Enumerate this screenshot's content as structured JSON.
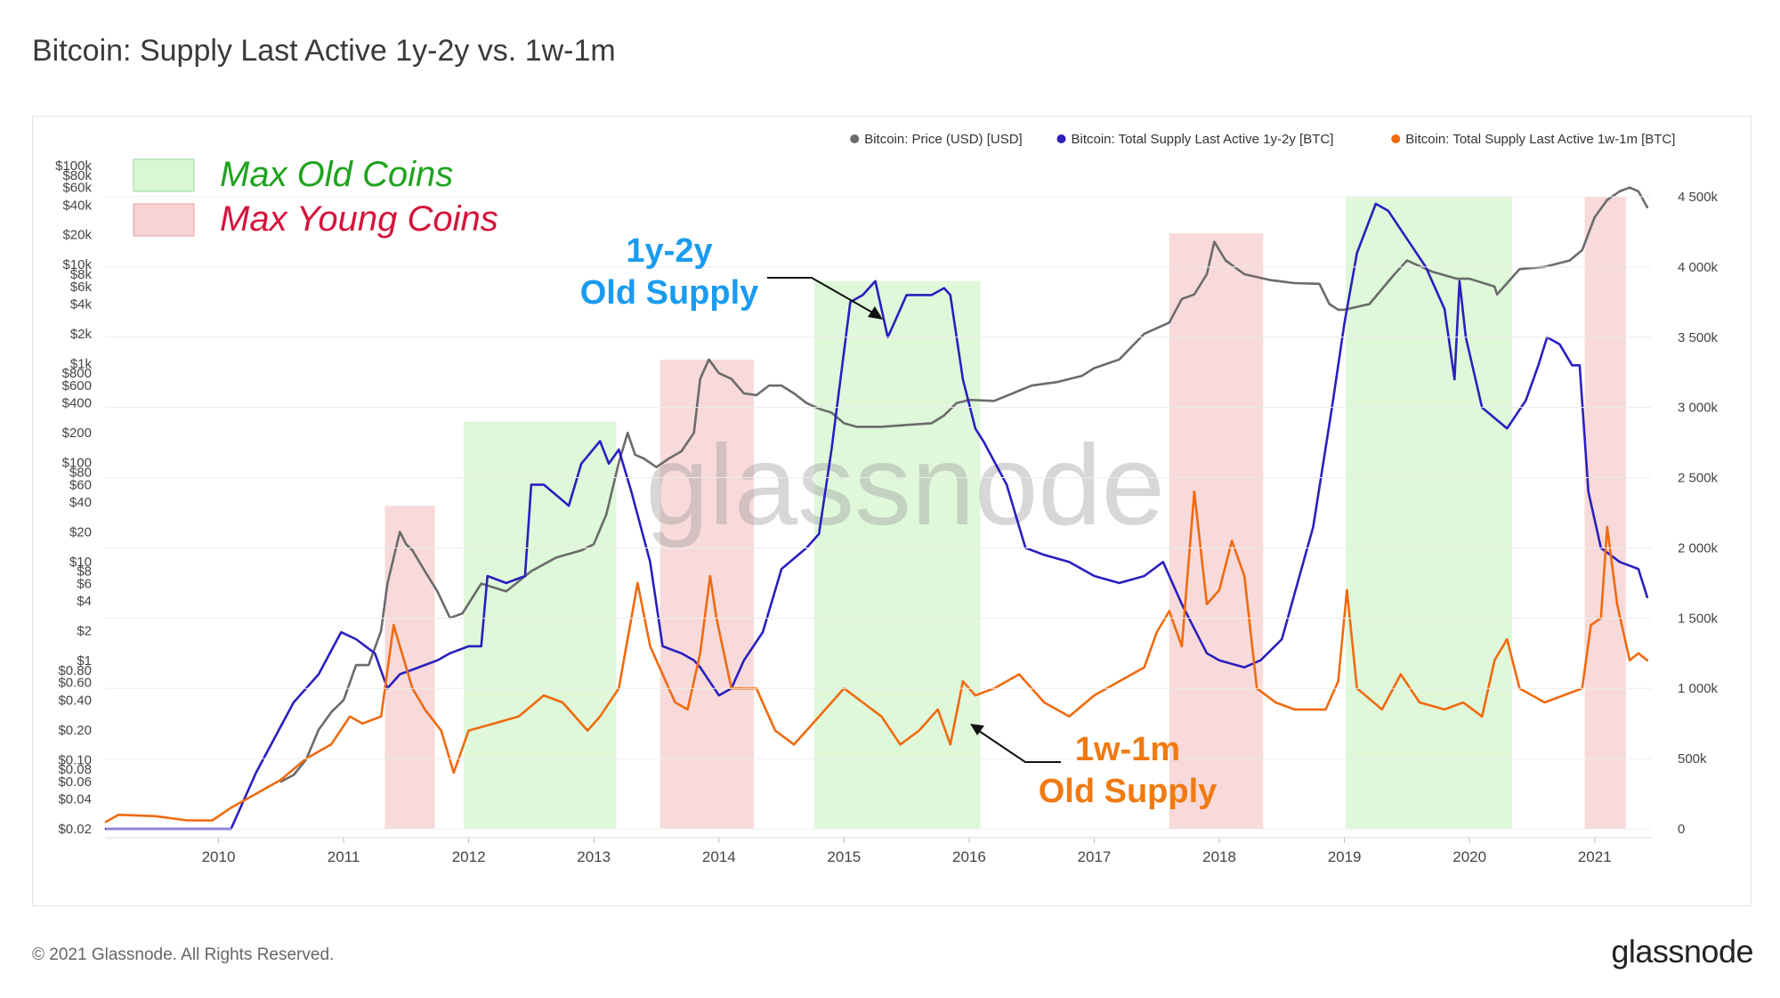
{
  "page": {
    "title": "Bitcoin: Supply Last Active 1y-2y vs. 1w-1m",
    "copyright": "© 2021 Glassnode. All Rights Reserved.",
    "brand": "glassnode",
    "watermark": "glassnode"
  },
  "chart_data": {
    "type": "line",
    "title": "Bitcoin: Supply Last Active 1y-2y vs. 1w-1m",
    "colors": {
      "price": "#6b6b6b",
      "old_supply": "#2a1fbf",
      "young_supply": "#f06a0f",
      "max_old_fill": "#d9f7d3",
      "max_young_fill": "#f7d3d3",
      "old_label": "#1a9bf0",
      "young_label": "#f07a12",
      "legend_old_text": "#1fa31f",
      "legend_young_text": "#d4143c"
    },
    "legend": {
      "position": "top-right",
      "entries": [
        "Bitcoin: Price (USD) [USD]",
        "Bitcoin: Total Supply Last Active 1y-2y [BTC]",
        "Bitcoin: Total Supply Last Active 1w-1m [BTC]"
      ]
    },
    "band_legend": {
      "position": "top-left",
      "entries": [
        {
          "label": "Max Old Coins",
          "kind": "old"
        },
        {
          "label": "Max Young Coins",
          "kind": "young"
        }
      ]
    },
    "annotations": {
      "old_supply": [
        "1y-2y",
        "Old Supply"
      ],
      "young_supply": [
        "1w-1m",
        "Old Supply"
      ]
    },
    "x_axis": {
      "range": [
        2009.1,
        2021.45
      ],
      "ticks": [
        "2010",
        "2011",
        "2012",
        "2013",
        "2014",
        "2015",
        "2016",
        "2017",
        "2018",
        "2019",
        "2020",
        "2021"
      ],
      "tick_values": [
        2010,
        2011,
        2012,
        2013,
        2014,
        2015,
        2016,
        2017,
        2018,
        2019,
        2020,
        2021
      ]
    },
    "y_left": {
      "scale": "log",
      "unit": "USD",
      "range": [
        0.02,
        100000
      ],
      "ticks": [
        {
          "label": "$0.02",
          "value": 0.02
        },
        {
          "label": "$0.04",
          "value": 0.04
        },
        {
          "label": "$0.06",
          "value": 0.06
        },
        {
          "label": "$0.08",
          "value": 0.08
        },
        {
          "label": "$0.10",
          "value": 0.1
        },
        {
          "label": "$0.20",
          "value": 0.2
        },
        {
          "label": "$0.40",
          "value": 0.4
        },
        {
          "label": "$0.60",
          "value": 0.6
        },
        {
          "label": "$0.80",
          "value": 0.8
        },
        {
          "label": "$1",
          "value": 1
        },
        {
          "label": "$2",
          "value": 2
        },
        {
          "label": "$4",
          "value": 4
        },
        {
          "label": "$6",
          "value": 6
        },
        {
          "label": "$8",
          "value": 8
        },
        {
          "label": "$10",
          "value": 10
        },
        {
          "label": "$20",
          "value": 20
        },
        {
          "label": "$40",
          "value": 40
        },
        {
          "label": "$60",
          "value": 60
        },
        {
          "label": "$80",
          "value": 80
        },
        {
          "label": "$100",
          "value": 100
        },
        {
          "label": "$200",
          "value": 200
        },
        {
          "label": "$400",
          "value": 400
        },
        {
          "label": "$600",
          "value": 600
        },
        {
          "label": "$800",
          "value": 800
        },
        {
          "label": "$1k",
          "value": 1000
        },
        {
          "label": "$2k",
          "value": 2000
        },
        {
          "label": "$4k",
          "value": 4000
        },
        {
          "label": "$6k",
          "value": 6000
        },
        {
          "label": "$8k",
          "value": 8000
        },
        {
          "label": "$10k",
          "value": 10000
        },
        {
          "label": "$20k",
          "value": 20000
        },
        {
          "label": "$40k",
          "value": 40000
        },
        {
          "label": "$60k",
          "value": 60000
        },
        {
          "label": "$80k",
          "value": 80000
        },
        {
          "label": "$100k",
          "value": 100000
        }
      ]
    },
    "y_right": {
      "scale": "linear",
      "unit": "BTC",
      "range": [
        0,
        4500000
      ],
      "ticks": [
        {
          "label": "0",
          "value": 0
        },
        {
          "label": "500k",
          "value": 500000
        },
        {
          "label": "1 000k",
          "value": 1000000
        },
        {
          "label": "1 500k",
          "value": 1500000
        },
        {
          "label": "2 000k",
          "value": 2000000
        },
        {
          "label": "2 500k",
          "value": 2500000
        },
        {
          "label": "3 000k",
          "value": 3000000
        },
        {
          "label": "3 500k",
          "value": 3500000
        },
        {
          "label": "4 000k",
          "value": 4000000
        },
        {
          "label": "4 500k",
          "value": 4500000
        }
      ]
    },
    "bands": [
      {
        "kind": "young",
        "start": 2011.33,
        "end": 2011.73,
        "top": 2300000
      },
      {
        "kind": "old",
        "start": 2011.96,
        "end": 2013.18,
        "top": 2900000
      },
      {
        "kind": "young",
        "start": 2013.53,
        "end": 2014.28,
        "top": 3340000
      },
      {
        "kind": "old",
        "start": 2014.76,
        "end": 2016.09,
        "top": 3900000
      },
      {
        "kind": "young",
        "start": 2017.6,
        "end": 2018.35,
        "top": 4240000
      },
      {
        "kind": "old",
        "start": 2019.01,
        "end": 2020.34,
        "top": 4500000
      },
      {
        "kind": "young",
        "start": 2020.92,
        "end": 2021.25,
        "top": 4500000
      }
    ],
    "series": [
      {
        "name": "Bitcoin: Price (USD) [USD]",
        "axis": "left",
        "x": [
          2010.5,
          2010.6,
          2010.7,
          2010.8,
          2010.9,
          2011.0,
          2011.1,
          2011.2,
          2011.3,
          2011.35,
          2011.45,
          2011.5,
          2011.55,
          2011.65,
          2011.75,
          2011.85,
          2011.95,
          2012.1,
          2012.3,
          2012.5,
          2012.7,
          2012.9,
          2013.0,
          2013.1,
          2013.2,
          2013.27,
          2013.33,
          2013.4,
          2013.5,
          2013.6,
          2013.7,
          2013.8,
          2013.85,
          2013.92,
          2014.0,
          2014.1,
          2014.2,
          2014.3,
          2014.4,
          2014.5,
          2014.6,
          2014.7,
          2014.8,
          2014.9,
          2015.0,
          2015.1,
          2015.3,
          2015.5,
          2015.7,
          2015.8,
          2015.9,
          2016.0,
          2016.2,
          2016.5,
          2016.7,
          2016.9,
          2017.0,
          2017.2,
          2017.4,
          2017.6,
          2017.7,
          2017.8,
          2017.9,
          2017.96,
          2018.05,
          2018.2,
          2018.4,
          2018.6,
          2018.8,
          2018.88,
          2018.95,
          2019.0,
          2019.2,
          2019.4,
          2019.5,
          2019.7,
          2019.9,
          2020.0,
          2020.2,
          2020.22,
          2020.4,
          2020.6,
          2020.8,
          2020.9,
          2021.0,
          2021.1,
          2021.2,
          2021.28,
          2021.35,
          2021.42
        ],
        "values": [
          0.06,
          0.07,
          0.1,
          0.2,
          0.3,
          0.4,
          0.9,
          0.9,
          2.0,
          6,
          20,
          15,
          13,
          8,
          5,
          2.7,
          3.0,
          6,
          5,
          8,
          11,
          13,
          15,
          30,
          100,
          200,
          120,
          110,
          90,
          110,
          130,
          200,
          700,
          1100,
          800,
          700,
          500,
          480,
          600,
          600,
          500,
          400,
          350,
          320,
          250,
          230,
          230,
          240,
          250,
          300,
          400,
          430,
          420,
          600,
          650,
          750,
          900,
          1100,
          2000,
          2600,
          4500,
          5000,
          8000,
          17000,
          11000,
          8000,
          7000,
          6500,
          6400,
          4000,
          3500,
          3500,
          4000,
          8000,
          11000,
          8500,
          7200,
          7200,
          6000,
          5000,
          9000,
          9500,
          11000,
          14000,
          30000,
          45000,
          55000,
          60000,
          55000,
          38000
        ]
      },
      {
        "name": "Bitcoin: Total Supply Last Active 1y-2y [BTC]",
        "axis": "right",
        "x": [
          2009.1,
          2010.1,
          2010.3,
          2010.6,
          2010.8,
          2010.98,
          2011.1,
          2011.25,
          2011.35,
          2011.45,
          2011.6,
          2011.75,
          2011.85,
          2012.0,
          2012.1,
          2012.15,
          2012.3,
          2012.45,
          2012.5,
          2012.6,
          2012.8,
          2012.9,
          2013.05,
          2013.12,
          2013.2,
          2013.3,
          2013.45,
          2013.55,
          2013.7,
          2013.8,
          2013.85,
          2014.0,
          2014.1,
          2014.2,
          2014.35,
          2014.5,
          2014.7,
          2014.8,
          2014.9,
          2015.05,
          2015.15,
          2015.25,
          2015.35,
          2015.4,
          2015.5,
          2015.6,
          2015.7,
          2015.8,
          2015.85,
          2015.95,
          2016.05,
          2016.12,
          2016.3,
          2016.45,
          2016.6,
          2016.8,
          2017.0,
          2017.2,
          2017.4,
          2017.55,
          2017.7,
          2017.9,
          2018.0,
          2018.2,
          2018.33,
          2018.5,
          2018.75,
          2018.9,
          2019.0,
          2019.1,
          2019.25,
          2019.35,
          2019.5,
          2019.65,
          2019.8,
          2019.88,
          2019.92,
          2019.97,
          2020.1,
          2020.3,
          2020.45,
          2020.55,
          2020.62,
          2020.72,
          2020.82,
          2020.88,
          2020.95,
          2021.05,
          2021.2,
          2021.35,
          2021.42
        ],
        "values": [
          0,
          0,
          400000,
          900000,
          1100000,
          1400000,
          1350000,
          1250000,
          1000000,
          1100000,
          1150000,
          1200000,
          1250000,
          1300000,
          1300000,
          1800000,
          1750000,
          1800000,
          2450000,
          2450000,
          2300000,
          2600000,
          2760000,
          2600000,
          2700000,
          2400000,
          1900000,
          1300000,
          1250000,
          1200000,
          1150000,
          950000,
          1000000,
          1200000,
          1400000,
          1850000,
          2000000,
          2100000,
          2700000,
          3750000,
          3800000,
          3900000,
          3500000,
          3600000,
          3800000,
          3800000,
          3800000,
          3850000,
          3800000,
          3200000,
          2850000,
          2750000,
          2450000,
          2000000,
          1950000,
          1900000,
          1800000,
          1750000,
          1800000,
          1900000,
          1600000,
          1250000,
          1200000,
          1150000,
          1200000,
          1350000,
          2150000,
          3000000,
          3600000,
          4100000,
          4450000,
          4400000,
          4200000,
          4000000,
          3700000,
          3200000,
          3900000,
          3500000,
          3000000,
          2850000,
          3050000,
          3300000,
          3500000,
          3450000,
          3300000,
          3300000,
          2400000,
          2000000,
          1900000,
          1850000,
          1650000
        ]
      },
      {
        "name": "Bitcoin: Total Supply Last Active 1w-1m [BTC]",
        "axis": "right",
        "x": [
          2009.1,
          2009.2,
          2009.5,
          2009.75,
          2009.95,
          2010.1,
          2010.3,
          2010.5,
          2010.7,
          2010.9,
          2011.05,
          2011.15,
          2011.3,
          2011.4,
          2011.45,
          2011.55,
          2011.65,
          2011.78,
          2011.88,
          2012.0,
          2012.2,
          2012.4,
          2012.6,
          2012.75,
          2012.95,
          2013.05,
          2013.2,
          2013.35,
          2013.45,
          2013.55,
          2013.65,
          2013.75,
          2013.85,
          2013.93,
          2013.98,
          2014.1,
          2014.3,
          2014.45,
          2014.6,
          2014.75,
          2015.0,
          2015.15,
          2015.3,
          2015.45,
          2015.6,
          2015.75,
          2015.85,
          2015.95,
          2016.05,
          2016.2,
          2016.4,
          2016.6,
          2016.8,
          2017.0,
          2017.2,
          2017.4,
          2017.5,
          2017.6,
          2017.7,
          2017.8,
          2017.9,
          2018.0,
          2018.1,
          2018.2,
          2018.3,
          2018.45,
          2018.6,
          2018.75,
          2018.85,
          2018.95,
          2019.02,
          2019.1,
          2019.3,
          2019.45,
          2019.6,
          2019.8,
          2019.95,
          2020.1,
          2020.2,
          2020.3,
          2020.4,
          2020.6,
          2020.75,
          2020.9,
          2020.97,
          2021.05,
          2021.1,
          2021.18,
          2021.28,
          2021.35,
          2021.42
        ],
        "values": [
          50000,
          100000,
          90000,
          60000,
          60000,
          150000,
          250000,
          350000,
          500000,
          600000,
          800000,
          750000,
          800000,
          1450000,
          1300000,
          1000000,
          850000,
          700000,
          400000,
          700000,
          750000,
          800000,
          950000,
          900000,
          700000,
          800000,
          1000000,
          1750000,
          1300000,
          1100000,
          900000,
          850000,
          1250000,
          1800000,
          1500000,
          1000000,
          1000000,
          700000,
          600000,
          750000,
          1000000,
          900000,
          800000,
          600000,
          700000,
          850000,
          600000,
          1050000,
          950000,
          1000000,
          1100000,
          900000,
          800000,
          950000,
          1050000,
          1150000,
          1400000,
          1550000,
          1300000,
          2400000,
          1600000,
          1700000,
          2050000,
          1800000,
          1000000,
          900000,
          850000,
          850000,
          850000,
          1050000,
          1700000,
          1000000,
          850000,
          1100000,
          900000,
          850000,
          900000,
          800000,
          1200000,
          1350000,
          1000000,
          900000,
          950000,
          1000000,
          1450000,
          1500000,
          2150000,
          1600000,
          1200000,
          1250000,
          1200000
        ]
      }
    ]
  }
}
